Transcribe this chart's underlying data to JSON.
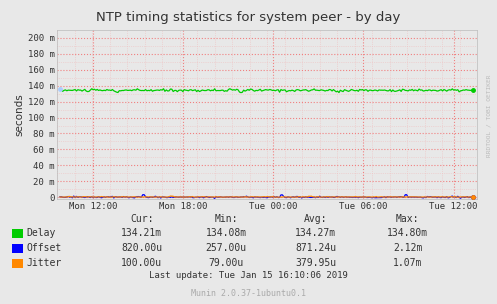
{
  "title": "NTP timing statistics for system peer - by day",
  "ylabel": "seconds",
  "background_color": "#e8e8e8",
  "plot_bg_color": "#e8e8e8",
  "ytick_labels": [
    "0",
    "20 m",
    "40 m",
    "60 m",
    "80 m",
    "100 m",
    "120 m",
    "140 m",
    "160 m",
    "180 m",
    "200 m"
  ],
  "ytick_values": [
    0.0,
    0.02,
    0.04,
    0.06,
    0.08,
    0.1,
    0.12,
    0.14,
    0.16,
    0.18,
    0.2
  ],
  "ymax": 0.2095,
  "ymin": -0.0025,
  "xtick_labels": [
    "Mon 12:00",
    "Mon 18:00",
    "Tue 00:00",
    "Tue 06:00",
    "Tue 12:00"
  ],
  "delay_color": "#00cc00",
  "offset_color": "#0000ff",
  "jitter_color": "#ff8800",
  "delay_value": 0.13421,
  "legend_labels": [
    "Delay",
    "Offset",
    "Jitter"
  ],
  "legend_colors": [
    "#00cc00",
    "#0000ff",
    "#ff8800"
  ],
  "stats_header": [
    "Cur:",
    "Min:",
    "Avg:",
    "Max:"
  ],
  "stats_delay": [
    "134.21m",
    "134.08m",
    "134.27m",
    "134.80m"
  ],
  "stats_offset": [
    "820.00u",
    "257.00u",
    "871.24u",
    "2.12m"
  ],
  "stats_jitter": [
    "100.00u",
    "79.00u",
    "379.95u",
    "1.07m"
  ],
  "last_update": "Last update: Tue Jan 15 16:10:06 2019",
  "munin_version": "Munin 2.0.37-1ubuntu0.1",
  "watermark": "RRDTOOL / TOBI OETIKER",
  "n_points": 300
}
